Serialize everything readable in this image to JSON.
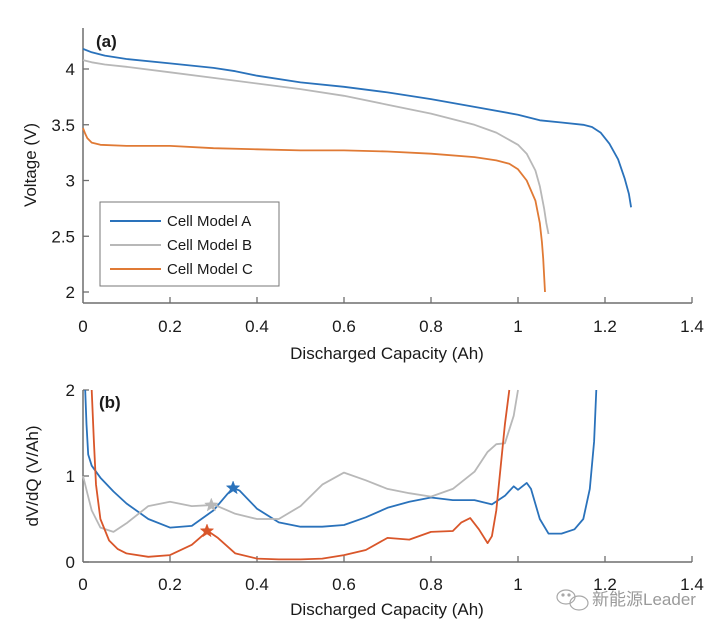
{
  "colors": {
    "A": "#2a72bb",
    "B": "#b8b8b8",
    "C": "#e07a35",
    "C_b": "#d9562a",
    "axis": "#6e6e6e"
  },
  "watermark": {
    "text": "新能源Leader",
    "icon": "wechat-icon"
  },
  "chart_data": [
    {
      "type": "line",
      "panel": "(a)",
      "title": "",
      "xlabel": "Discharged Capacity (Ah)",
      "ylabel": "Voltage (V)",
      "xlim": [
        0,
        1.4
      ],
      "ylim": [
        1.9,
        4.35
      ],
      "xticks": [
        0,
        0.2,
        0.4,
        0.6,
        0.8,
        1,
        1.2,
        1.4
      ],
      "xtick_labels": [
        "0",
        "0.2",
        "0.4",
        "0.6",
        "0.8",
        "1",
        "1.2",
        "1.4"
      ],
      "yticks": [
        2,
        2.5,
        3,
        3.5,
        4
      ],
      "ytick_labels": [
        "2",
        "2.5",
        "3",
        "3.5",
        "4"
      ],
      "legend": {
        "position": "bottom-left",
        "entries": [
          "Cell Model A",
          "Cell Model B",
          "Cell Model C"
        ]
      },
      "series": [
        {
          "name": "Cell Model A",
          "color_key": "A",
          "x": [
            0,
            0.02,
            0.05,
            0.1,
            0.2,
            0.3,
            0.35,
            0.4,
            0.5,
            0.6,
            0.7,
            0.8,
            0.9,
            1.0,
            1.05,
            1.1,
            1.15,
            1.17,
            1.19,
            1.21,
            1.23,
            1.245,
            1.255,
            1.26
          ],
          "y": [
            4.18,
            4.15,
            4.12,
            4.09,
            4.05,
            4.01,
            3.98,
            3.94,
            3.88,
            3.84,
            3.79,
            3.73,
            3.66,
            3.59,
            3.54,
            3.52,
            3.5,
            3.48,
            3.43,
            3.33,
            3.19,
            3.02,
            2.88,
            2.76
          ]
        },
        {
          "name": "Cell Model B",
          "color_key": "B",
          "x": [
            0,
            0.02,
            0.05,
            0.1,
            0.2,
            0.3,
            0.4,
            0.5,
            0.6,
            0.7,
            0.8,
            0.9,
            0.95,
            1.0,
            1.02,
            1.04,
            1.05,
            1.06,
            1.065,
            1.07
          ],
          "y": [
            4.08,
            4.06,
            4.04,
            4.02,
            3.97,
            3.92,
            3.87,
            3.82,
            3.76,
            3.68,
            3.6,
            3.5,
            3.43,
            3.32,
            3.24,
            3.09,
            2.95,
            2.75,
            2.62,
            2.52
          ]
        },
        {
          "name": "Cell Model C",
          "color_key": "C",
          "x": [
            0,
            0.005,
            0.01,
            0.02,
            0.04,
            0.1,
            0.2,
            0.3,
            0.4,
            0.5,
            0.6,
            0.7,
            0.8,
            0.9,
            0.95,
            0.98,
            1.0,
            1.02,
            1.04,
            1.05,
            1.055,
            1.058,
            1.06,
            1.062
          ],
          "y": [
            3.47,
            3.42,
            3.38,
            3.34,
            3.32,
            3.31,
            3.31,
            3.29,
            3.28,
            3.27,
            3.27,
            3.26,
            3.24,
            3.21,
            3.18,
            3.15,
            3.1,
            3.0,
            2.82,
            2.62,
            2.45,
            2.3,
            2.15,
            2.0
          ]
        }
      ]
    },
    {
      "type": "line",
      "panel": "(b)",
      "title": "",
      "xlabel": "Discharged Capacity (Ah)",
      "ylabel": "dV/dQ (V/Ah)",
      "xlim": [
        0,
        1.4
      ],
      "ylim": [
        0,
        2
      ],
      "xticks": [
        0,
        0.2,
        0.4,
        0.6,
        0.8,
        1,
        1.2,
        1.4
      ],
      "xtick_labels": [
        "0",
        "0.2",
        "0.4",
        "0.6",
        "0.8",
        "1",
        "1.2",
        "1.4"
      ],
      "yticks": [
        0,
        1,
        2
      ],
      "ytick_labels": [
        "0",
        "1",
        "2"
      ],
      "series": [
        {
          "name": "Cell Model A",
          "color_key": "A",
          "x": [
            0.005,
            0.008,
            0.012,
            0.02,
            0.04,
            0.07,
            0.1,
            0.15,
            0.2,
            0.25,
            0.3,
            0.33,
            0.345,
            0.36,
            0.4,
            0.45,
            0.5,
            0.55,
            0.6,
            0.65,
            0.7,
            0.75,
            0.8,
            0.85,
            0.9,
            0.94,
            0.97,
            0.99,
            1.0,
            1.02,
            1.03,
            1.05,
            1.07,
            1.1,
            1.13,
            1.15,
            1.165,
            1.175,
            1.18
          ],
          "y": [
            2.0,
            1.6,
            1.25,
            1.12,
            0.98,
            0.82,
            0.68,
            0.5,
            0.4,
            0.42,
            0.6,
            0.78,
            0.86,
            0.83,
            0.62,
            0.46,
            0.41,
            0.41,
            0.43,
            0.52,
            0.63,
            0.7,
            0.75,
            0.72,
            0.72,
            0.67,
            0.77,
            0.88,
            0.84,
            0.92,
            0.85,
            0.5,
            0.33,
            0.33,
            0.38,
            0.5,
            0.85,
            1.4,
            2.0
          ]
        },
        {
          "name": "Cell Model B",
          "color_key": "B",
          "x": [
            0.0,
            0.005,
            0.01,
            0.02,
            0.04,
            0.07,
            0.1,
            0.15,
            0.2,
            0.25,
            0.29,
            0.3,
            0.35,
            0.4,
            0.45,
            0.5,
            0.55,
            0.6,
            0.65,
            0.7,
            0.75,
            0.8,
            0.85,
            0.9,
            0.93,
            0.95,
            0.97,
            0.99,
            1.0
          ],
          "y": [
            1.0,
            0.9,
            0.8,
            0.6,
            0.4,
            0.35,
            0.45,
            0.65,
            0.7,
            0.65,
            0.66,
            0.67,
            0.56,
            0.5,
            0.5,
            0.65,
            0.9,
            1.04,
            0.95,
            0.85,
            0.8,
            0.76,
            0.85,
            1.05,
            1.28,
            1.37,
            1.38,
            1.7,
            2.0
          ]
        },
        {
          "name": "Cell Model C",
          "color_key": "C_b",
          "x": [
            0.02,
            0.025,
            0.03,
            0.04,
            0.06,
            0.08,
            0.1,
            0.15,
            0.2,
            0.25,
            0.28,
            0.29,
            0.31,
            0.35,
            0.4,
            0.45,
            0.5,
            0.55,
            0.6,
            0.65,
            0.7,
            0.75,
            0.8,
            0.85,
            0.87,
            0.89,
            0.91,
            0.93,
            0.94,
            0.95,
            0.96,
            0.97,
            0.98
          ],
          "y": [
            2.0,
            1.4,
            0.9,
            0.5,
            0.25,
            0.15,
            0.1,
            0.06,
            0.08,
            0.2,
            0.33,
            0.35,
            0.28,
            0.1,
            0.04,
            0.03,
            0.03,
            0.04,
            0.08,
            0.14,
            0.28,
            0.26,
            0.35,
            0.36,
            0.46,
            0.51,
            0.38,
            0.22,
            0.3,
            0.6,
            1.1,
            1.6,
            2.0
          ]
        }
      ],
      "markers": [
        {
          "series": "Cell Model A",
          "x": 0.345,
          "y": 0.86,
          "symbol": "star"
        },
        {
          "series": "Cell Model B",
          "x": 0.295,
          "y": 0.66,
          "symbol": "star"
        },
        {
          "series": "Cell Model C",
          "x": 0.285,
          "y": 0.36,
          "symbol": "star"
        }
      ]
    }
  ]
}
